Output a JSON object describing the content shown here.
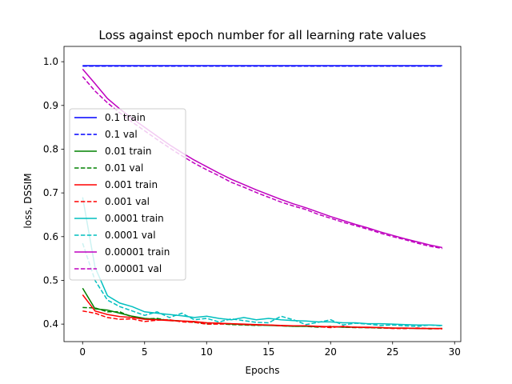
{
  "chart_data": {
    "type": "line",
    "title": "Loss against epoch number for all learning rate values",
    "xlabel": "Epochs",
    "ylabel": "loss, DSSIM",
    "xlim": [
      -1.5,
      30.5
    ],
    "ylim": [
      0.36,
      1.035
    ],
    "xticks": [
      0,
      5,
      10,
      15,
      20,
      25,
      30
    ],
    "yticks": [
      0.4,
      0.5,
      0.6,
      0.7,
      0.8,
      0.9,
      1.0
    ],
    "xtick_labels": [
      "0",
      "5",
      "10",
      "15",
      "20",
      "25",
      "30"
    ],
    "ytick_labels": [
      "0.4",
      "0.5",
      "0.6",
      "0.7",
      "0.8",
      "0.9",
      "1.0"
    ],
    "grid": false,
    "legend_position": "center-left",
    "x": [
      0,
      1,
      2,
      3,
      4,
      5,
      6,
      7,
      8,
      9,
      10,
      11,
      12,
      13,
      14,
      15,
      16,
      17,
      18,
      19,
      20,
      21,
      22,
      23,
      24,
      25,
      26,
      27,
      28,
      29
    ],
    "series": [
      {
        "name": "0.1 train",
        "color": "#0000ff",
        "dash": "solid",
        "values": [
          0.991,
          0.991,
          0.991,
          0.991,
          0.991,
          0.991,
          0.991,
          0.991,
          0.991,
          0.991,
          0.991,
          0.991,
          0.991,
          0.991,
          0.991,
          0.991,
          0.991,
          0.991,
          0.991,
          0.991,
          0.991,
          0.991,
          0.991,
          0.991,
          0.991,
          0.991,
          0.991,
          0.991,
          0.991,
          0.991
        ]
      },
      {
        "name": "0.1 val",
        "color": "#0000ff",
        "dash": "dashed",
        "values": [
          0.99,
          0.99,
          0.99,
          0.99,
          0.99,
          0.99,
          0.99,
          0.99,
          0.99,
          0.99,
          0.99,
          0.99,
          0.99,
          0.99,
          0.99,
          0.99,
          0.99,
          0.99,
          0.99,
          0.99,
          0.99,
          0.99,
          0.99,
          0.99,
          0.99,
          0.99,
          0.99,
          0.99,
          0.99,
          0.99
        ]
      },
      {
        "name": "0.01 train",
        "color": "#008000",
        "dash": "solid",
        "values": [
          0.482,
          0.435,
          0.432,
          0.425,
          0.418,
          0.413,
          0.411,
          0.409,
          0.407,
          0.405,
          0.403,
          0.402,
          0.4,
          0.399,
          0.398,
          0.397,
          0.396,
          0.395,
          0.395,
          0.394,
          0.394,
          0.393,
          0.393,
          0.392,
          0.392,
          0.391,
          0.391,
          0.39,
          0.39,
          0.39
        ]
      },
      {
        "name": "0.01 val",
        "color": "#008000",
        "dash": "dashed",
        "values": [
          0.438,
          0.437,
          0.428,
          0.428,
          0.416,
          0.412,
          0.413,
          0.408,
          0.407,
          0.404,
          0.4,
          0.401,
          0.399,
          0.398,
          0.397,
          0.398,
          0.396,
          0.395,
          0.395,
          0.393,
          0.395,
          0.393,
          0.392,
          0.392,
          0.391,
          0.391,
          0.39,
          0.391,
          0.389,
          0.39
        ]
      },
      {
        "name": "0.001 train",
        "color": "#ff0000",
        "dash": "solid",
        "values": [
          0.467,
          0.43,
          0.422,
          0.417,
          0.415,
          0.411,
          0.41,
          0.408,
          0.407,
          0.406,
          0.403,
          0.402,
          0.401,
          0.4,
          0.399,
          0.398,
          0.397,
          0.396,
          0.396,
          0.395,
          0.394,
          0.394,
          0.393,
          0.393,
          0.392,
          0.391,
          0.391,
          0.39,
          0.39,
          0.39
        ]
      },
      {
        "name": "0.001 val",
        "color": "#ff0000",
        "dash": "dashed",
        "values": [
          0.43,
          0.425,
          0.415,
          0.411,
          0.412,
          0.406,
          0.409,
          0.41,
          0.405,
          0.404,
          0.4,
          0.4,
          0.401,
          0.399,
          0.398,
          0.398,
          0.396,
          0.396,
          0.396,
          0.394,
          0.392,
          0.395,
          0.393,
          0.392,
          0.392,
          0.39,
          0.39,
          0.391,
          0.39,
          0.389
        ]
      },
      {
        "name": "0.0001 train",
        "color": "#00bfbf",
        "dash": "solid",
        "values": [
          0.69,
          0.53,
          0.465,
          0.448,
          0.44,
          0.428,
          0.425,
          0.422,
          0.419,
          0.415,
          0.418,
          0.413,
          0.41,
          0.415,
          0.41,
          0.413,
          0.41,
          0.408,
          0.407,
          0.405,
          0.405,
          0.403,
          0.403,
          0.401,
          0.401,
          0.4,
          0.399,
          0.398,
          0.398,
          0.397
        ]
      },
      {
        "name": "0.0001 val",
        "color": "#00bfbf",
        "dash": "dashed",
        "values": [
          0.585,
          0.5,
          0.455,
          0.44,
          0.43,
          0.42,
          0.428,
          0.415,
          0.425,
          0.41,
          0.413,
          0.405,
          0.412,
          0.408,
          0.404,
          0.403,
          0.418,
          0.41,
          0.399,
          0.404,
          0.41,
          0.398,
          0.402,
          0.4,
          0.397,
          0.398,
          0.396,
          0.395,
          0.398,
          0.396
        ]
      },
      {
        "name": "0.00001 train",
        "color": "#bf00bf",
        "dash": "solid",
        "values": [
          0.983,
          0.95,
          0.916,
          0.892,
          0.87,
          0.85,
          0.83,
          0.81,
          0.792,
          0.775,
          0.76,
          0.745,
          0.731,
          0.719,
          0.707,
          0.696,
          0.685,
          0.675,
          0.666,
          0.656,
          0.646,
          0.637,
          0.628,
          0.62,
          0.611,
          0.603,
          0.595,
          0.588,
          0.581,
          0.575
        ]
      },
      {
        "name": "0.00001 val",
        "color": "#bf00bf",
        "dash": "dashed",
        "values": [
          0.966,
          0.933,
          0.906,
          0.883,
          0.862,
          0.842,
          0.822,
          0.803,
          0.785,
          0.768,
          0.753,
          0.739,
          0.724,
          0.713,
          0.701,
          0.69,
          0.679,
          0.67,
          0.662,
          0.651,
          0.642,
          0.633,
          0.625,
          0.617,
          0.608,
          0.6,
          0.593,
          0.585,
          0.578,
          0.573
        ]
      }
    ]
  }
}
